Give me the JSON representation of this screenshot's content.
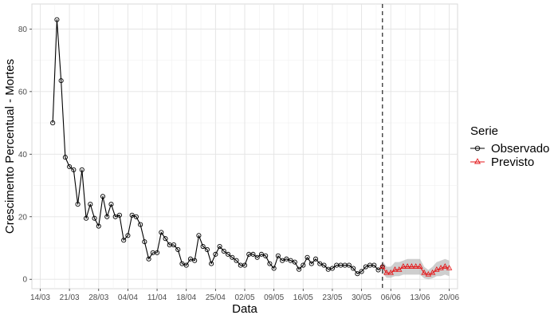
{
  "chart_data": {
    "type": "line",
    "title": "",
    "xlabel": "Data",
    "ylabel": "Crescimento Percentual - Mortes",
    "x_tick_labels": [
      "14/03",
      "21/03",
      "28/03",
      "04/04",
      "11/04",
      "18/04",
      "25/04",
      "02/05",
      "09/05",
      "16/05",
      "23/05",
      "30/05",
      "06/06",
      "13/06",
      "20/06"
    ],
    "y_tick_labels": [
      "0",
      "20",
      "40",
      "60",
      "80"
    ],
    "x_range_day_index": [
      0,
      102
    ],
    "ylim": [
      -3,
      88
    ],
    "grid": true,
    "vertical_reference_line": {
      "x_label": "06/06",
      "x_day_index": 84,
      "style": "dashed"
    },
    "legend": {
      "title": "Serie",
      "placement": "right",
      "entries": [
        "Observado",
        "Previsto"
      ]
    },
    "series": [
      {
        "name": "Observado",
        "color": "#000000",
        "marker": "circle",
        "x_day_index": [
          5,
          6,
          7,
          8,
          9,
          10,
          11,
          12,
          13,
          14,
          15,
          16,
          17,
          18,
          19,
          20,
          21,
          22,
          23,
          24,
          25,
          26,
          27,
          28,
          29,
          30,
          31,
          32,
          33,
          34,
          35,
          36,
          37,
          38,
          39,
          40,
          41,
          42,
          43,
          44,
          45,
          46,
          47,
          48,
          49,
          50,
          51,
          52,
          53,
          54,
          55,
          56,
          57,
          58,
          59,
          60,
          61,
          62,
          63,
          64,
          65,
          66,
          67,
          68,
          69,
          70,
          71,
          72,
          73,
          74,
          75,
          76,
          77,
          78,
          79,
          80,
          81,
          82,
          83,
          84
        ],
        "values": [
          50,
          83,
          63.5,
          39,
          36,
          35,
          24,
          35,
          19.5,
          24,
          19.5,
          17,
          26.5,
          20,
          24,
          20,
          20.5,
          12.5,
          14,
          20.5,
          20,
          17.5,
          12,
          6.5,
          8.5,
          8.5,
          15,
          13,
          11,
          11,
          9.5,
          5,
          4.5,
          6.5,
          6,
          14,
          10.5,
          9.5,
          5,
          8,
          10.5,
          9,
          8,
          7,
          6,
          4.5,
          4.5,
          8,
          8,
          7,
          8,
          7.5,
          5,
          3.5,
          7.5,
          6,
          6.5,
          6,
          5.5,
          3.2,
          4.5,
          7,
          5,
          6.5,
          5,
          4.5,
          3.2,
          3.5,
          4.5,
          4.5,
          4.5,
          4.5,
          3.5,
          1.8,
          2.5,
          4,
          4.5,
          4.5,
          3,
          4
        ]
      },
      {
        "name": "Previsto",
        "color": "#e41a1c",
        "marker": "triangle",
        "x_day_index": [
          84,
          85,
          86,
          87,
          88,
          89,
          90,
          91,
          92,
          93,
          94,
          95,
          96,
          97,
          98,
          99,
          100
        ],
        "values": [
          4,
          2,
          2,
          3,
          3,
          4,
          4,
          4,
          4,
          4,
          2,
          1.5,
          2,
          3,
          3.5,
          4,
          3.5
        ],
        "interval_lower": [
          2,
          0.5,
          0.5,
          1,
          1,
          1.5,
          1.5,
          1.5,
          1.5,
          1.5,
          0.3,
          0,
          0.3,
          1,
          1,
          1.5,
          1
        ],
        "interval_upper": [
          6,
          4,
          4,
          5.5,
          5.5,
          6,
          6.5,
          6.5,
          6.5,
          6.5,
          4,
          3,
          4,
          5.5,
          6,
          6.5,
          6
        ]
      }
    ]
  }
}
